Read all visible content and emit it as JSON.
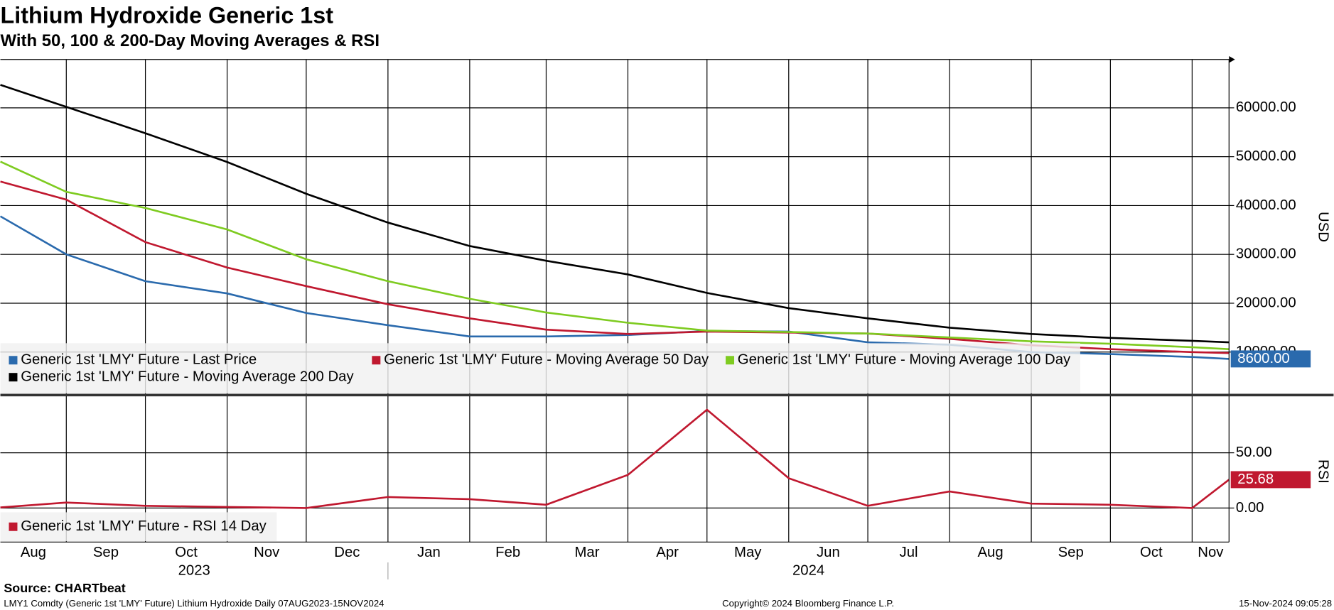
{
  "chart_data": [
    {
      "type": "line",
      "title": "Lithium Hydroxide Generic 1st",
      "subtitle": "With 50, 100 & 200-Day Moving Averages & RSI",
      "y_label": "USD",
      "x": [
        "2023-08-07",
        "2023-09",
        "2023-10",
        "2023-11",
        "2023-12",
        "2024-01",
        "2024-02",
        "2024-03",
        "2024-04",
        "2024-05",
        "2024-06",
        "2024-07",
        "2024-08",
        "2024-09",
        "2024-10",
        "2024-11",
        "2024-11-15"
      ],
      "xlim": [
        "2023-08-07",
        "2024-11-15"
      ],
      "xticks": [
        "2023-09",
        "2023-10",
        "2023-11",
        "2023-12",
        "2024-01",
        "2024-02",
        "2024-03",
        "2024-04",
        "2024-05",
        "2024-06",
        "2024-07",
        "2024-08",
        "2024-09",
        "2024-10",
        "2024-11"
      ],
      "xtick_labels": [
        "Aug",
        "Sep",
        "Oct",
        "Nov",
        "Dec",
        "Jan",
        "Feb",
        "Mar",
        "Apr",
        "May",
        "Jun",
        "Jul",
        "Aug",
        "Sep",
        "Oct",
        "Nov"
      ],
      "years": [
        "2023",
        "2024"
      ],
      "ylim": [
        1200,
        69900
      ],
      "yticks": [
        {
          "value": 10000,
          "label": "10000.00"
        },
        {
          "value": 20000,
          "label": "20000.00"
        },
        {
          "value": 30000,
          "label": "30000.00"
        },
        {
          "value": 40000,
          "label": "40000.00"
        },
        {
          "value": 50000,
          "label": "50000.00"
        },
        {
          "value": 60000,
          "label": "60000.00"
        }
      ],
      "grid": true,
      "series": [
        {
          "name": "Generic 1st 'LMY' Future - Last Price",
          "color": "#2a6aad",
          "values": [
            37800,
            30000,
            24500,
            22000,
            18000,
            15500,
            13200,
            13200,
            13500,
            14300,
            14200,
            12000,
            11500,
            10000,
            9600,
            9000,
            8600
          ],
          "value_labels": [
            null,
            null,
            null,
            null,
            null,
            null,
            null,
            null,
            null,
            null,
            null,
            null,
            null,
            null,
            null,
            null,
            "8600.00"
          ]
        },
        {
          "name": "Generic 1st 'LMY' Future - Moving Average 50 Day",
          "color": "#c0182f",
          "values": [
            44900,
            41200,
            32500,
            27300,
            23500,
            19800,
            16900,
            14600,
            13700,
            14200,
            14000,
            13800,
            12700,
            11400,
            10600,
            10000,
            9800
          ]
        },
        {
          "name": "Generic 1st 'LMY' Future - Moving Average 100 Day",
          "color": "#7ecb20",
          "values": [
            49000,
            42800,
            39500,
            35100,
            29000,
            24500,
            20900,
            18100,
            16000,
            14400,
            14100,
            13800,
            13000,
            12200,
            11700,
            11000,
            10600
          ]
        },
        {
          "name": "Generic 1st 'LMY' Future - Moving Average 200 Day",
          "color": "#000000",
          "values": [
            64700,
            60200,
            54800,
            48900,
            42400,
            36500,
            31700,
            28700,
            25900,
            22100,
            19000,
            16900,
            15000,
            13700,
            12900,
            12300,
            12000
          ]
        }
      ]
    },
    {
      "type": "line",
      "y_label": "RSI",
      "ylim": [
        -30.8,
        101.5
      ],
      "yticks": [
        {
          "value": 0,
          "label": "0.00"
        },
        {
          "value": 50,
          "label": "50.00"
        }
      ],
      "grid": true,
      "series": [
        {
          "name": "Generic 1st 'LMY' Future - RSI 14 Day",
          "color": "#c0182f",
          "values": [
            0.5,
            5,
            2,
            1,
            0,
            10,
            8,
            3,
            30,
            89,
            27,
            2,
            15,
            4,
            3,
            0,
            25.68
          ],
          "value_labels": [
            null,
            null,
            null,
            null,
            null,
            null,
            null,
            null,
            null,
            null,
            null,
            null,
            null,
            null,
            null,
            null,
            "25.68"
          ]
        }
      ]
    }
  ],
  "footer": {
    "source": "Source: CHARTbeat",
    "description": "LMY1 Comdty (Generic 1st 'LMY' Future) Lithium Hydroxide  Daily 07AUG2023-15NOV2024",
    "copyright": "Copyright© 2024 Bloomberg Finance L.P.",
    "timestamp": "15-Nov-2024 09:05:28"
  }
}
